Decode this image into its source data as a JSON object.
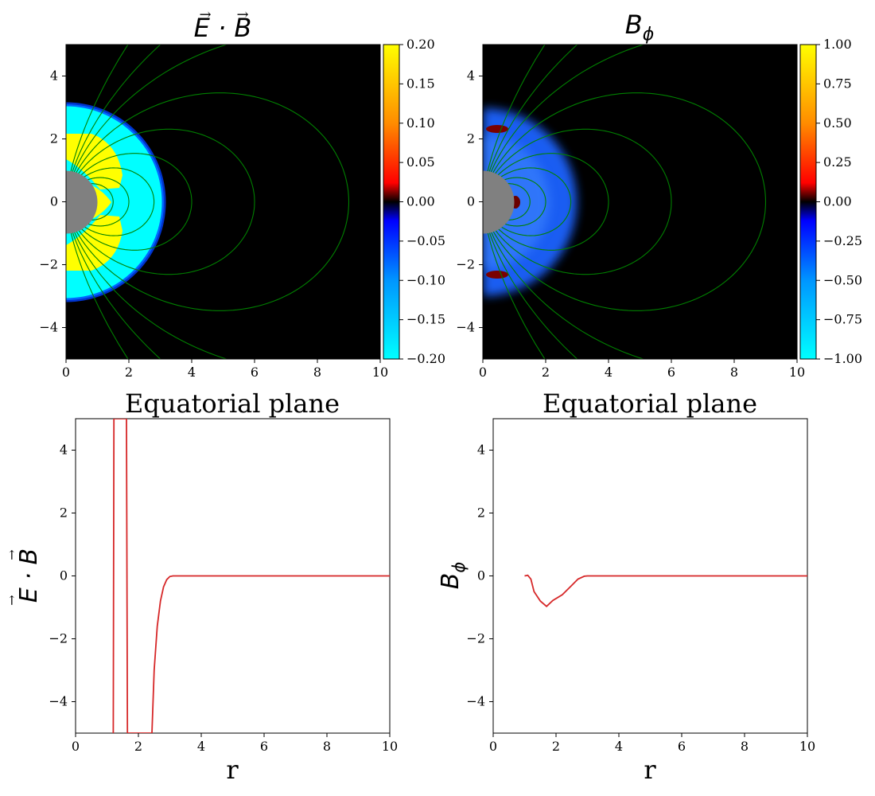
{
  "chart_data": [
    {
      "type": "heatmap",
      "title": "E·B (vectors)",
      "xlim": [
        0,
        10
      ],
      "ylim": [
        -5,
        5
      ],
      "xticks": [
        "0",
        "2",
        "4",
        "6",
        "8",
        "10"
      ],
      "yticks": [
        "4",
        "2",
        "0",
        "−2",
        "−4"
      ],
      "colorbar": {
        "range": [
          -0.2,
          0.2
        ],
        "ticks": [
          "0.20",
          "0.15",
          "0.10",
          "0.05",
          "0.00",
          "−0.05",
          "−0.10",
          "−0.15",
          "−0.20"
        ]
      },
      "colors": {
        "background": "#000000",
        "field_lines": "#008000",
        "star": "#808080",
        "positive": "#ffff00",
        "negative": "#00ffff"
      },
      "star_radius": 1.0,
      "field_line_loops": [
        1.5,
        2.0,
        2.8,
        4.0,
        6.0,
        9.0,
        14.0,
        22.0,
        40.0
      ]
    },
    {
      "type": "heatmap",
      "title": "Bφ",
      "xlim": [
        0,
        10
      ],
      "ylim": [
        -5,
        5
      ],
      "xticks": [
        "0",
        "2",
        "4",
        "6",
        "8",
        "10"
      ],
      "yticks": [
        "4",
        "2",
        "0",
        "−2",
        "−4"
      ],
      "colorbar": {
        "range": [
          -1.0,
          1.0
        ],
        "ticks": [
          "1.00",
          "0.75",
          "0.50",
          "0.25",
          "0.00",
          "−0.25",
          "−0.50",
          "−0.75",
          "−1.00"
        ]
      },
      "colors": {
        "background": "#000000",
        "field_lines": "#008000",
        "star": "#808080",
        "negative": "#0064ff"
      },
      "star_radius": 1.0,
      "field_line_loops": [
        1.5,
        2.0,
        2.8,
        4.0,
        6.0,
        9.0,
        14.0,
        22.0,
        40.0
      ]
    },
    {
      "type": "line",
      "title": "Equatorial plane",
      "xlabel": "r",
      "ylabel": "E·B (vectors)",
      "xlim": [
        0,
        10
      ],
      "ylim": [
        -5,
        5
      ],
      "xticks": [
        "0",
        "2",
        "4",
        "6",
        "8",
        "10"
      ],
      "yticks": [
        "4",
        "2",
        "0",
        "−2",
        "−4"
      ],
      "series": [
        {
          "color": "#d62728",
          "points": [
            [
              1.2,
              -5.0
            ],
            [
              1.22,
              5.0
            ],
            [
              1.62,
              5.0
            ],
            [
              1.65,
              -5.0
            ],
            [
              2.43,
              -5.0
            ],
            [
              2.5,
              -3.0
            ],
            [
              2.6,
              -1.6
            ],
            [
              2.7,
              -0.8
            ],
            [
              2.8,
              -0.35
            ],
            [
              2.9,
              -0.12
            ],
            [
              3.0,
              -0.02
            ],
            [
              3.1,
              0.0
            ],
            [
              4.0,
              0.0
            ],
            [
              6.0,
              0.0
            ],
            [
              8.0,
              0.0
            ],
            [
              10.0,
              0.0
            ]
          ]
        }
      ]
    },
    {
      "type": "line",
      "title": "Equatorial plane",
      "xlabel": "r",
      "ylabel": "Bφ",
      "xlim": [
        0,
        10
      ],
      "ylim": [
        -5,
        5
      ],
      "xticks": [
        "0",
        "2",
        "4",
        "6",
        "8",
        "10"
      ],
      "yticks": [
        "4",
        "2",
        "0",
        "−2",
        "−4"
      ],
      "series": [
        {
          "color": "#d62728",
          "points": [
            [
              1.0,
              0.0
            ],
            [
              1.1,
              0.02
            ],
            [
              1.2,
              -0.1
            ],
            [
              1.3,
              -0.5
            ],
            [
              1.5,
              -0.8
            ],
            [
              1.7,
              -0.97
            ],
            [
              1.9,
              -0.78
            ],
            [
              2.2,
              -0.6
            ],
            [
              2.5,
              -0.3
            ],
            [
              2.7,
              -0.1
            ],
            [
              2.9,
              -0.01
            ],
            [
              3.0,
              0.0
            ],
            [
              5.0,
              0.0
            ],
            [
              10.0,
              0.0
            ]
          ]
        }
      ]
    }
  ]
}
